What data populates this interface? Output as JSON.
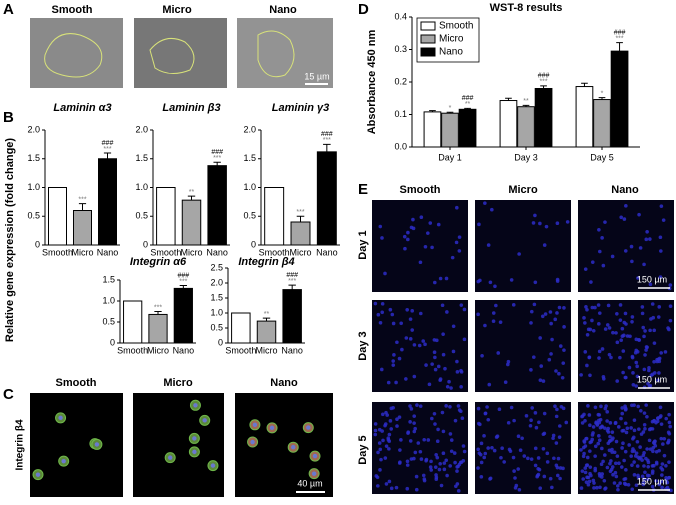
{
  "panel_labels": [
    "A",
    "B",
    "C",
    "D",
    "E"
  ],
  "panel_a": {
    "columns": [
      "Smooth",
      "Micro",
      "Nano"
    ],
    "scale_bar": "15 µm"
  },
  "panel_b": {
    "ylabel": "Relative gene expression (fold change)"
  },
  "panel_c": {
    "columns": [
      "Smooth",
      "Micro",
      "Nano"
    ],
    "row_label": "Integrin β4",
    "scale_bar": "40 µm"
  },
  "panel_e": {
    "columns": [
      "Smooth",
      "Micro",
      "Nano"
    ],
    "rows": [
      "Day 1",
      "Day 3",
      "Day 5"
    ],
    "scale_bar": "150 µm"
  },
  "chart_data": [
    {
      "type": "bar",
      "title": "Laminin α3",
      "categories": [
        "Smooth",
        "Micro",
        "Nano"
      ],
      "values": [
        1.0,
        0.6,
        1.5
      ],
      "errors": [
        0,
        0.12,
        0.1
      ],
      "colors": [
        "#ffffff",
        "#a6a6a6",
        "#000000"
      ],
      "annotations": [
        null,
        [
          "***"
        ],
        [
          "###",
          "***"
        ]
      ],
      "ylim": [
        0,
        2.0
      ],
      "yticks": [
        0,
        0.5,
        {
          "value": 1.0,
          "label": "1.0"
        },
        1.5,
        {
          "value": 2.0,
          "label": "2.0"
        }
      ]
    },
    {
      "type": "bar",
      "title": "Laminin β3",
      "categories": [
        "Smooth",
        "Micro",
        "Nano"
      ],
      "values": [
        1.0,
        0.78,
        1.38
      ],
      "errors": [
        0,
        0.07,
        0.06
      ],
      "colors": [
        "#ffffff",
        "#a6a6a6",
        "#000000"
      ],
      "annotations": [
        null,
        [
          "**"
        ],
        [
          "###",
          "***"
        ]
      ],
      "ylim": [
        0,
        2.0
      ],
      "yticks": [
        0,
        0.5,
        {
          "value": 1.0,
          "label": "1.0"
        },
        1.5,
        {
          "value": 2.0,
          "label": "2.0"
        }
      ]
    },
    {
      "type": "bar",
      "title": "Laminin γ3",
      "categories": [
        "Smooth",
        "Micro",
        "Nano"
      ],
      "values": [
        1.0,
        0.4,
        1.62
      ],
      "errors": [
        0,
        0.1,
        0.13
      ],
      "colors": [
        "#ffffff",
        "#a6a6a6",
        "#000000"
      ],
      "annotations": [
        null,
        [
          "***"
        ],
        [
          "###",
          "***"
        ]
      ],
      "ylim": [
        0,
        2.0
      ],
      "yticks": [
        0,
        0.5,
        {
          "value": 1.0,
          "label": "1.0"
        },
        1.5,
        {
          "value": 2.0,
          "label": "2.0"
        }
      ]
    },
    {
      "type": "bar",
      "title": "Integrin α6",
      "categories": [
        "Smooth",
        "Micro",
        "Nano"
      ],
      "values": [
        1.0,
        0.68,
        1.3
      ],
      "errors": [
        0,
        0.07,
        0.07
      ],
      "colors": [
        "#ffffff",
        "#a6a6a6",
        "#000000"
      ],
      "annotations": [
        null,
        [
          "***"
        ],
        [
          "###",
          "***"
        ]
      ],
      "ylim": [
        0,
        1.5
      ],
      "yticks": [
        0,
        0.5,
        {
          "value": 1.0,
          "label": "1.0"
        },
        1.5
      ]
    },
    {
      "type": "bar",
      "title": "Integrin β4",
      "categories": [
        "Smooth",
        "Micro",
        "Nano"
      ],
      "values": [
        1.0,
        0.73,
        1.78
      ],
      "errors": [
        0,
        0.1,
        0.15
      ],
      "colors": [
        "#ffffff",
        "#a6a6a6",
        "#000000"
      ],
      "annotations": [
        null,
        [
          "**"
        ],
        [
          "###",
          "***"
        ]
      ],
      "ylim": [
        0,
        2.5
      ],
      "yticks": [
        0,
        0.5,
        {
          "value": 1.0,
          "label": "1.0"
        },
        1.5,
        {
          "value": 2.0,
          "label": "2.0"
        },
        2.5
      ]
    },
    {
      "type": "grouped_bar",
      "title": "WST-8 results",
      "ylabel": "Absorbance 450 nm",
      "categories": [
        "Day 1",
        "Day 3",
        "Day 5"
      ],
      "series": [
        {
          "name": "Smooth",
          "color": "#ffffff",
          "values": [
            0.108,
            0.143,
            0.186
          ],
          "errors": [
            0.004,
            0.007,
            0.01
          ],
          "annotations": [
            null,
            null,
            null
          ]
        },
        {
          "name": "Micro",
          "color": "#a6a6a6",
          "values": [
            0.104,
            0.124,
            0.146
          ],
          "errors": [
            0.003,
            0.004,
            0.006
          ],
          "annotations": [
            [
              "*"
            ],
            [
              "**"
            ],
            [
              "*"
            ]
          ]
        },
        {
          "name": "Nano",
          "color": "#000000",
          "values": [
            0.116,
            0.18,
            0.295
          ],
          "errors": [
            0.003,
            0.008,
            0.026
          ],
          "annotations": [
            [
              "###",
              "**"
            ],
            [
              "###",
              "***"
            ],
            [
              "###",
              "***"
            ]
          ]
        }
      ],
      "legend": "upper-left",
      "ylim": [
        0,
        0.4
      ],
      "yticks": [
        {
          "value": 0,
          "label": "0.0"
        },
        0.1,
        0.2,
        0.3,
        0.4
      ]
    }
  ]
}
